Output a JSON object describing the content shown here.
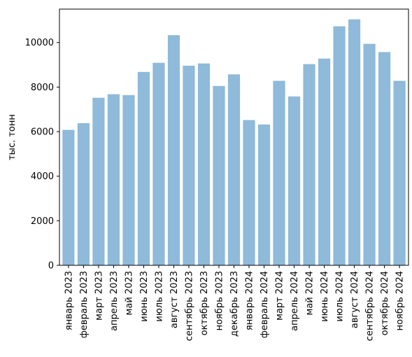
{
  "chart_data": {
    "type": "bar",
    "title": "",
    "xlabel": "",
    "ylabel": "тыс. тонн",
    "ylim": [
      0,
      11500
    ],
    "yticks": [
      0,
      2000,
      4000,
      6000,
      8000,
      10000
    ],
    "bar_color": "#8fbad9",
    "grid": false,
    "categories": [
      "январь 2023",
      "февраль 2023",
      "март 2023",
      "апрель 2023",
      "май 2023",
      "июнь 2023",
      "июль 2023",
      "август 2023",
      "сентябрь 2023",
      "октябрь 2023",
      "ноябрь 2023",
      "декабрь 2023",
      "январь 2024",
      "февраль 2024",
      "март 2024",
      "апрель 2024",
      "май 2024",
      "июнь 2024",
      "июль 2024",
      "август 2024",
      "сентябрь 2024",
      "октябрь 2024",
      "ноябрь 2024"
    ],
    "values": [
      6080,
      6380,
      7520,
      7680,
      7640,
      8680,
      9090,
      10330,
      8960,
      9060,
      8050,
      8570,
      6520,
      6320,
      8280,
      7580,
      9030,
      9280,
      10730,
      11040,
      9940,
      9570,
      8280
    ]
  }
}
